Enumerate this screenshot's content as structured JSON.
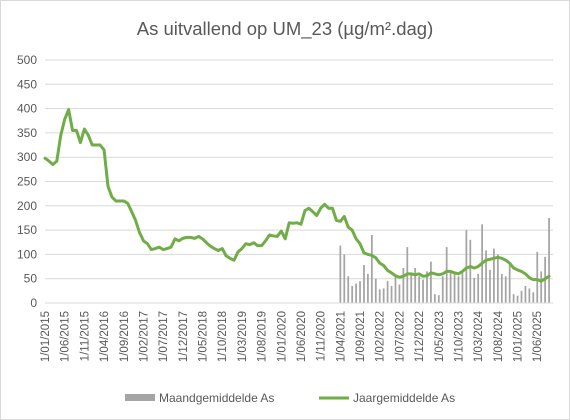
{
  "chart_data": {
    "type": "bar+line",
    "title": "As uitvallend op UM_23 (µg/m².dag)",
    "ylim": [
      0,
      500
    ],
    "y_ticks": [
      0,
      50,
      100,
      150,
      200,
      250,
      300,
      350,
      400,
      450,
      500
    ],
    "grid": "horizontal",
    "legend_position": "bottom",
    "x_tick_labels": [
      "1/01/2015",
      "1/06/2015",
      "1/11/2015",
      "1/04/2016",
      "1/09/2016",
      "1/02/2017",
      "1/07/2017",
      "1/12/2017",
      "1/05/2018",
      "1/10/2018",
      "1/03/2019",
      "1/08/2019",
      "1/01/2020",
      "1/06/2020",
      "1/11/2020",
      "1/04/2021",
      "1/09/2021",
      "1/02/2022",
      "1/07/2022",
      "1/12/2022",
      "1/05/2023",
      "1/10/2023",
      "1/03/2024",
      "1/08/2024",
      "1/01/2025",
      "1/06/2025"
    ],
    "series": [
      {
        "name": "Maandgemiddelde As",
        "type": "bar",
        "color": "#a5a5a5",
        "points": [
          [
            "2021-04",
            118
          ],
          [
            "2021-05",
            100
          ],
          [
            "2021-06",
            55
          ],
          [
            "2021-07",
            35
          ],
          [
            "2021-08",
            40
          ],
          [
            "2021-09",
            45
          ],
          [
            "2021-10",
            78
          ],
          [
            "2021-11",
            60
          ],
          [
            "2021-12",
            140
          ],
          [
            "2022-01",
            50
          ],
          [
            "2022-02",
            28
          ],
          [
            "2022-03",
            30
          ],
          [
            "2022-04",
            45
          ],
          [
            "2022-05",
            35
          ],
          [
            "2022-06",
            55
          ],
          [
            "2022-07",
            38
          ],
          [
            "2022-08",
            72
          ],
          [
            "2022-09",
            115
          ],
          [
            "2022-10",
            60
          ],
          [
            "2022-11",
            72
          ],
          [
            "2022-12",
            55
          ],
          [
            "2023-01",
            48
          ],
          [
            "2023-02",
            65
          ],
          [
            "2023-03",
            85
          ],
          [
            "2023-04",
            18
          ],
          [
            "2023-05",
            16
          ],
          [
            "2023-06",
            55
          ],
          [
            "2023-07",
            115
          ],
          [
            "2023-08",
            65
          ],
          [
            "2023-09",
            60
          ],
          [
            "2023-10",
            55
          ],
          [
            "2023-11",
            65
          ],
          [
            "2023-12",
            150
          ],
          [
            "2024-01",
            130
          ],
          [
            "2024-02",
            52
          ],
          [
            "2024-03",
            60
          ],
          [
            "2024-04",
            162
          ],
          [
            "2024-05",
            108
          ],
          [
            "2024-06",
            68
          ],
          [
            "2024-07",
            112
          ],
          [
            "2024-08",
            100
          ],
          [
            "2024-09",
            60
          ],
          [
            "2024-10",
            55
          ],
          [
            "2024-11",
            80
          ],
          [
            "2024-12",
            18
          ],
          [
            "2025-01",
            15
          ],
          [
            "2025-02",
            25
          ],
          [
            "2025-03",
            35
          ],
          [
            "2025-04",
            30
          ],
          [
            "2025-05",
            22
          ],
          [
            "2025-06",
            105
          ],
          [
            "2025-07",
            65
          ],
          [
            "2025-08",
            95
          ],
          [
            "2025-09",
            175
          ]
        ]
      },
      {
        "name": "Jaargemiddelde As",
        "type": "line",
        "color": "#70ad47",
        "points": [
          [
            "2015-01",
            298
          ],
          [
            "2015-02",
            292
          ],
          [
            "2015-03",
            285
          ],
          [
            "2015-04",
            292
          ],
          [
            "2015-05",
            345
          ],
          [
            "2015-06",
            378
          ],
          [
            "2015-07",
            398
          ],
          [
            "2015-08",
            355
          ],
          [
            "2015-09",
            355
          ],
          [
            "2015-10",
            330
          ],
          [
            "2015-11",
            358
          ],
          [
            "2015-12",
            345
          ],
          [
            "2016-01",
            325
          ],
          [
            "2016-02",
            325
          ],
          [
            "2016-03",
            325
          ],
          [
            "2016-04",
            315
          ],
          [
            "2016-05",
            240
          ],
          [
            "2016-06",
            218
          ],
          [
            "2016-07",
            210
          ],
          [
            "2016-08",
            210
          ],
          [
            "2016-09",
            210
          ],
          [
            "2016-10",
            205
          ],
          [
            "2016-11",
            188
          ],
          [
            "2016-12",
            170
          ],
          [
            "2017-01",
            145
          ],
          [
            "2017-02",
            128
          ],
          [
            "2017-03",
            122
          ],
          [
            "2017-04",
            110
          ],
          [
            "2017-05",
            112
          ],
          [
            "2017-06",
            115
          ],
          [
            "2017-07",
            110
          ],
          [
            "2017-08",
            112
          ],
          [
            "2017-09",
            115
          ],
          [
            "2017-10",
            132
          ],
          [
            "2017-11",
            128
          ],
          [
            "2017-12",
            133
          ],
          [
            "2018-01",
            135
          ],
          [
            "2018-02",
            135
          ],
          [
            "2018-03",
            133
          ],
          [
            "2018-04",
            137
          ],
          [
            "2018-05",
            132
          ],
          [
            "2018-06",
            124
          ],
          [
            "2018-07",
            117
          ],
          [
            "2018-08",
            112
          ],
          [
            "2018-09",
            108
          ],
          [
            "2018-10",
            112
          ],
          [
            "2018-11",
            97
          ],
          [
            "2018-12",
            92
          ],
          [
            "2019-01",
            88
          ],
          [
            "2019-02",
            105
          ],
          [
            "2019-03",
            112
          ],
          [
            "2019-04",
            122
          ],
          [
            "2019-05",
            120
          ],
          [
            "2019-06",
            124
          ],
          [
            "2019-07",
            118
          ],
          [
            "2019-08",
            118
          ],
          [
            "2019-09",
            128
          ],
          [
            "2019-10",
            140
          ],
          [
            "2019-11",
            138
          ],
          [
            "2019-12",
            137
          ],
          [
            "2020-01",
            148
          ],
          [
            "2020-02",
            132
          ],
          [
            "2020-03",
            165
          ],
          [
            "2020-04",
            164
          ],
          [
            "2020-05",
            165
          ],
          [
            "2020-06",
            162
          ],
          [
            "2020-07",
            190
          ],
          [
            "2020-08",
            195
          ],
          [
            "2020-09",
            188
          ],
          [
            "2020-10",
            180
          ],
          [
            "2020-11",
            195
          ],
          [
            "2020-12",
            203
          ],
          [
            "2021-01",
            195
          ],
          [
            "2021-02",
            195
          ],
          [
            "2021-03",
            170
          ],
          [
            "2021-04",
            168
          ],
          [
            "2021-05",
            178
          ],
          [
            "2021-06",
            156
          ],
          [
            "2021-07",
            150
          ],
          [
            "2021-08",
            132
          ],
          [
            "2021-09",
            122
          ],
          [
            "2021-10",
            103
          ],
          [
            "2021-11",
            100
          ],
          [
            "2021-12",
            98
          ],
          [
            "2022-01",
            93
          ],
          [
            "2022-02",
            82
          ],
          [
            "2022-03",
            77
          ],
          [
            "2022-04",
            67
          ],
          [
            "2022-05",
            62
          ],
          [
            "2022-06",
            56
          ],
          [
            "2022-07",
            53
          ],
          [
            "2022-08",
            55
          ],
          [
            "2022-09",
            60
          ],
          [
            "2022-10",
            60
          ],
          [
            "2022-11",
            58
          ],
          [
            "2022-12",
            60
          ],
          [
            "2023-01",
            55
          ],
          [
            "2023-02",
            56
          ],
          [
            "2023-03",
            62
          ],
          [
            "2023-04",
            60
          ],
          [
            "2023-05",
            58
          ],
          [
            "2023-06",
            60
          ],
          [
            "2023-07",
            65
          ],
          [
            "2023-08",
            65
          ],
          [
            "2023-09",
            62
          ],
          [
            "2023-10",
            60
          ],
          [
            "2023-11",
            65
          ],
          [
            "2023-12",
            72
          ],
          [
            "2024-01",
            75
          ],
          [
            "2024-02",
            72
          ],
          [
            "2024-03",
            75
          ],
          [
            "2024-04",
            82
          ],
          [
            "2024-05",
            88
          ],
          [
            "2024-06",
            90
          ],
          [
            "2024-07",
            92
          ],
          [
            "2024-08",
            94
          ],
          [
            "2024-09",
            92
          ],
          [
            "2024-10",
            88
          ],
          [
            "2024-11",
            82
          ],
          [
            "2024-12",
            72
          ],
          [
            "2025-01",
            68
          ],
          [
            "2025-02",
            65
          ],
          [
            "2025-03",
            60
          ],
          [
            "2025-04",
            52
          ],
          [
            "2025-05",
            48
          ],
          [
            "2025-06",
            48
          ],
          [
            "2025-07",
            45
          ],
          [
            "2025-08",
            50
          ],
          [
            "2025-09",
            55
          ]
        ]
      }
    ]
  }
}
